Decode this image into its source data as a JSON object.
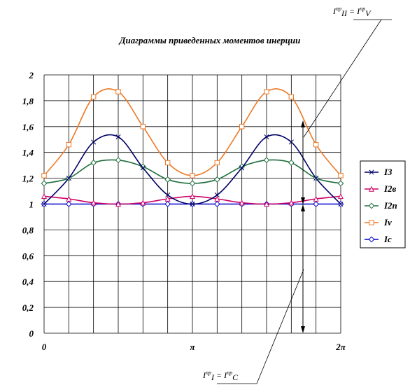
{
  "chart_data": {
    "type": "line",
    "title": "Диаграммы приведенных моментов инерции",
    "xlabel": "",
    "ylabel": "",
    "x_tick_labels": [
      "0",
      "π",
      "2π"
    ],
    "x_tick_values": [
      0,
      3.14159,
      6.28319
    ],
    "xlim": [
      0,
      6.28319
    ],
    "y_ticks": [
      "0",
      "0,2",
      "0,4",
      "0,6",
      "0,8",
      "1",
      "1,2",
      "1,4",
      "1,6",
      "1,8",
      "2"
    ],
    "ylim": [
      0,
      2
    ],
    "grid": true,
    "legend_position": "right",
    "series": [
      {
        "name": "I3",
        "color": "#000066",
        "marker": "x",
        "values": [
          1.0,
          1.2,
          1.48,
          1.52,
          1.28,
          1.07,
          1.0,
          1.07,
          1.28,
          1.52,
          1.48,
          1.2,
          1.0
        ]
      },
      {
        "name": "I2в",
        "color": "#cc0066",
        "marker": "triangle",
        "values": [
          1.06,
          1.04,
          1.01,
          1.0,
          1.01,
          1.04,
          1.06,
          1.04,
          1.01,
          1.0,
          1.01,
          1.04,
          1.06
        ]
      },
      {
        "name": "I2п",
        "color": "#1e6e3c",
        "marker": "diamond",
        "values": [
          1.16,
          1.2,
          1.32,
          1.34,
          1.29,
          1.19,
          1.16,
          1.19,
          1.29,
          1.34,
          1.32,
          1.2,
          1.16
        ]
      },
      {
        "name": "Iv",
        "color": "#ee7722",
        "marker": "square",
        "values": [
          1.22,
          1.46,
          1.83,
          1.87,
          1.6,
          1.32,
          1.22,
          1.32,
          1.6,
          1.87,
          1.83,
          1.46,
          1.22
        ]
      },
      {
        "name": "Ic",
        "color": "#0000cc",
        "marker": "diamond",
        "values": [
          1.0,
          1.0,
          1.0,
          1.0,
          1.0,
          1.0,
          1.0,
          1.0,
          1.0,
          1.0,
          1.0,
          1.0,
          1.0
        ]
      }
    ],
    "annotations": {
      "top": {
        "main": "I",
        "sup": "пр",
        "sub": "II",
        "eq": " = ",
        "main2": "I",
        "sup2": "пр",
        "sub2": "V"
      },
      "bottom": {
        "main": "I",
        "sup": "пр",
        "sub": "I",
        "eq": "  = ",
        "main2": "I",
        "sup2": "пр",
        "sub2": "C"
      }
    }
  }
}
